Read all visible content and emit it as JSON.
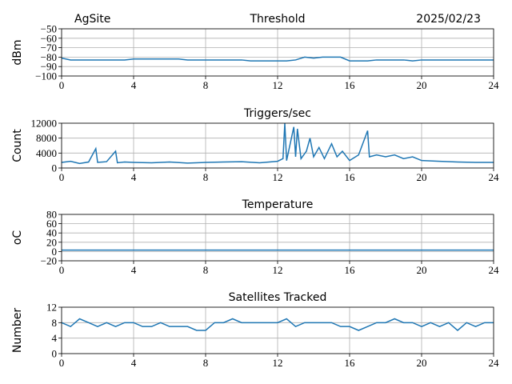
{
  "chart_data": [
    {
      "type": "line",
      "title": "Threshold",
      "title_left": "AgSite",
      "title_right": "2025/02/23",
      "ylabel": "dBm",
      "color": "#1f77b4",
      "grid": true,
      "x": [
        0,
        0.5,
        1,
        1.5,
        2,
        2.5,
        3,
        3.5,
        4,
        4.5,
        5,
        5.5,
        6,
        6.5,
        7,
        7.5,
        8,
        8.5,
        9,
        9.5,
        10,
        10.5,
        11,
        11.5,
        12,
        12.5,
        13,
        13.5,
        14,
        14.5,
        15,
        15.5,
        16,
        16.5,
        17,
        17.5,
        18,
        18.5,
        19,
        19.5,
        20,
        20.5,
        21,
        21.5,
        22,
        22.5,
        23,
        23.5,
        24
      ],
      "values": [
        -81,
        -83,
        -83,
        -83,
        -83,
        -83,
        -83,
        -83,
        -82,
        -82,
        -82,
        -82,
        -82,
        -82,
        -83,
        -83,
        -83,
        -83,
        -83,
        -83,
        -83,
        -84,
        -84,
        -84,
        -84,
        -84,
        -83,
        -80,
        -81,
        -80,
        -80,
        -80,
        -84,
        -84,
        -84,
        -83,
        -83,
        -83,
        -83,
        -84,
        -83,
        -83,
        -83,
        -83,
        -83,
        -83,
        -83,
        -83,
        -83
      ],
      "xlim": [
        0,
        24
      ],
      "xticks": [
        0,
        4,
        8,
        12,
        16,
        20,
        24
      ],
      "ylim": [
        -100,
        -50
      ],
      "yticks": [
        {
          "value": -50,
          "label": "−50"
        },
        {
          "value": -60,
          "label": "−60"
        },
        {
          "value": -70,
          "label": "−70"
        },
        {
          "value": -80,
          "label": "−80"
        },
        {
          "value": -90,
          "label": "−90"
        },
        {
          "value": -100,
          "label": "−100"
        }
      ]
    },
    {
      "type": "line",
      "title": "Triggers/sec",
      "ylabel": "Count",
      "color": "#1f77b4",
      "grid": true,
      "x": [
        0,
        0.5,
        1,
        1.5,
        1.9,
        2,
        2.5,
        3,
        3.1,
        3.5,
        4,
        5,
        6,
        7,
        8,
        9,
        10,
        11,
        12,
        12.3,
        12.4,
        12.5,
        12.9,
        13,
        13.1,
        13.3,
        13.6,
        13.8,
        14,
        14.3,
        14.6,
        15,
        15.3,
        15.6,
        16,
        16.5,
        17,
        17.1,
        17.5,
        18,
        18.5,
        19,
        19.5,
        20,
        21,
        22,
        23,
        24
      ],
      "values": [
        1500,
        1800,
        1200,
        1600,
        5200,
        1500,
        1700,
        4500,
        1400,
        1600,
        1500,
        1400,
        1600,
        1300,
        1500,
        1600,
        1700,
        1400,
        1800,
        2500,
        12000,
        2000,
        11000,
        3000,
        10500,
        2500,
        4500,
        8000,
        3000,
        5500,
        2500,
        6500,
        3000,
        4500,
        2000,
        3500,
        10000,
        3000,
        3500,
        3000,
        3500,
        2500,
        3000,
        2000,
        1800,
        1600,
        1500,
        1500
      ],
      "xlim": [
        0,
        24
      ],
      "xticks": [
        0,
        4,
        8,
        12,
        16,
        20,
        24
      ],
      "ylim": [
        0,
        12000
      ],
      "yticks": [
        0,
        4000,
        8000,
        12000
      ]
    },
    {
      "type": "line",
      "title": "Temperature",
      "ylabel": "oC",
      "color": "#1f77b4",
      "grid": true,
      "x": [
        0,
        24
      ],
      "values": [
        3,
        3
      ],
      "xlim": [
        0,
        24
      ],
      "xticks": [
        0,
        4,
        8,
        12,
        16,
        20,
        24
      ],
      "ylim": [
        -20,
        80
      ],
      "yticks": [
        {
          "value": -20,
          "label": "−20"
        },
        0,
        20,
        40,
        60,
        80
      ]
    },
    {
      "type": "line",
      "title": "Satellites Tracked",
      "ylabel": "Number",
      "color": "#1f77b4",
      "grid": true,
      "x": [
        0,
        0.5,
        1,
        1.5,
        2,
        2.5,
        3,
        3.5,
        4,
        4.5,
        5,
        5.5,
        6,
        6.5,
        7,
        7.5,
        8,
        8.5,
        9,
        9.5,
        10,
        10.5,
        11,
        11.5,
        12,
        12.5,
        13,
        13.5,
        14,
        14.5,
        15,
        15.5,
        16,
        16.5,
        17,
        17.5,
        18,
        18.5,
        19,
        19.5,
        20,
        20.5,
        21,
        21.5,
        22,
        22.5,
        23,
        23.5,
        24
      ],
      "values": [
        8,
        7,
        9,
        8,
        7,
        8,
        7,
        8,
        8,
        7,
        7,
        8,
        7,
        7,
        7,
        6,
        6,
        8,
        8,
        9,
        8,
        8,
        8,
        8,
        8,
        9,
        7,
        8,
        8,
        8,
        8,
        7,
        7,
        6,
        7,
        8,
        8,
        9,
        8,
        8,
        7,
        8,
        7,
        8,
        6,
        8,
        7,
        8,
        8
      ],
      "xlim": [
        0,
        24
      ],
      "xticks": [
        0,
        4,
        8,
        12,
        16,
        20,
        24
      ],
      "ylim": [
        0,
        12
      ],
      "yticks": [
        0,
        4,
        8,
        12
      ]
    }
  ]
}
